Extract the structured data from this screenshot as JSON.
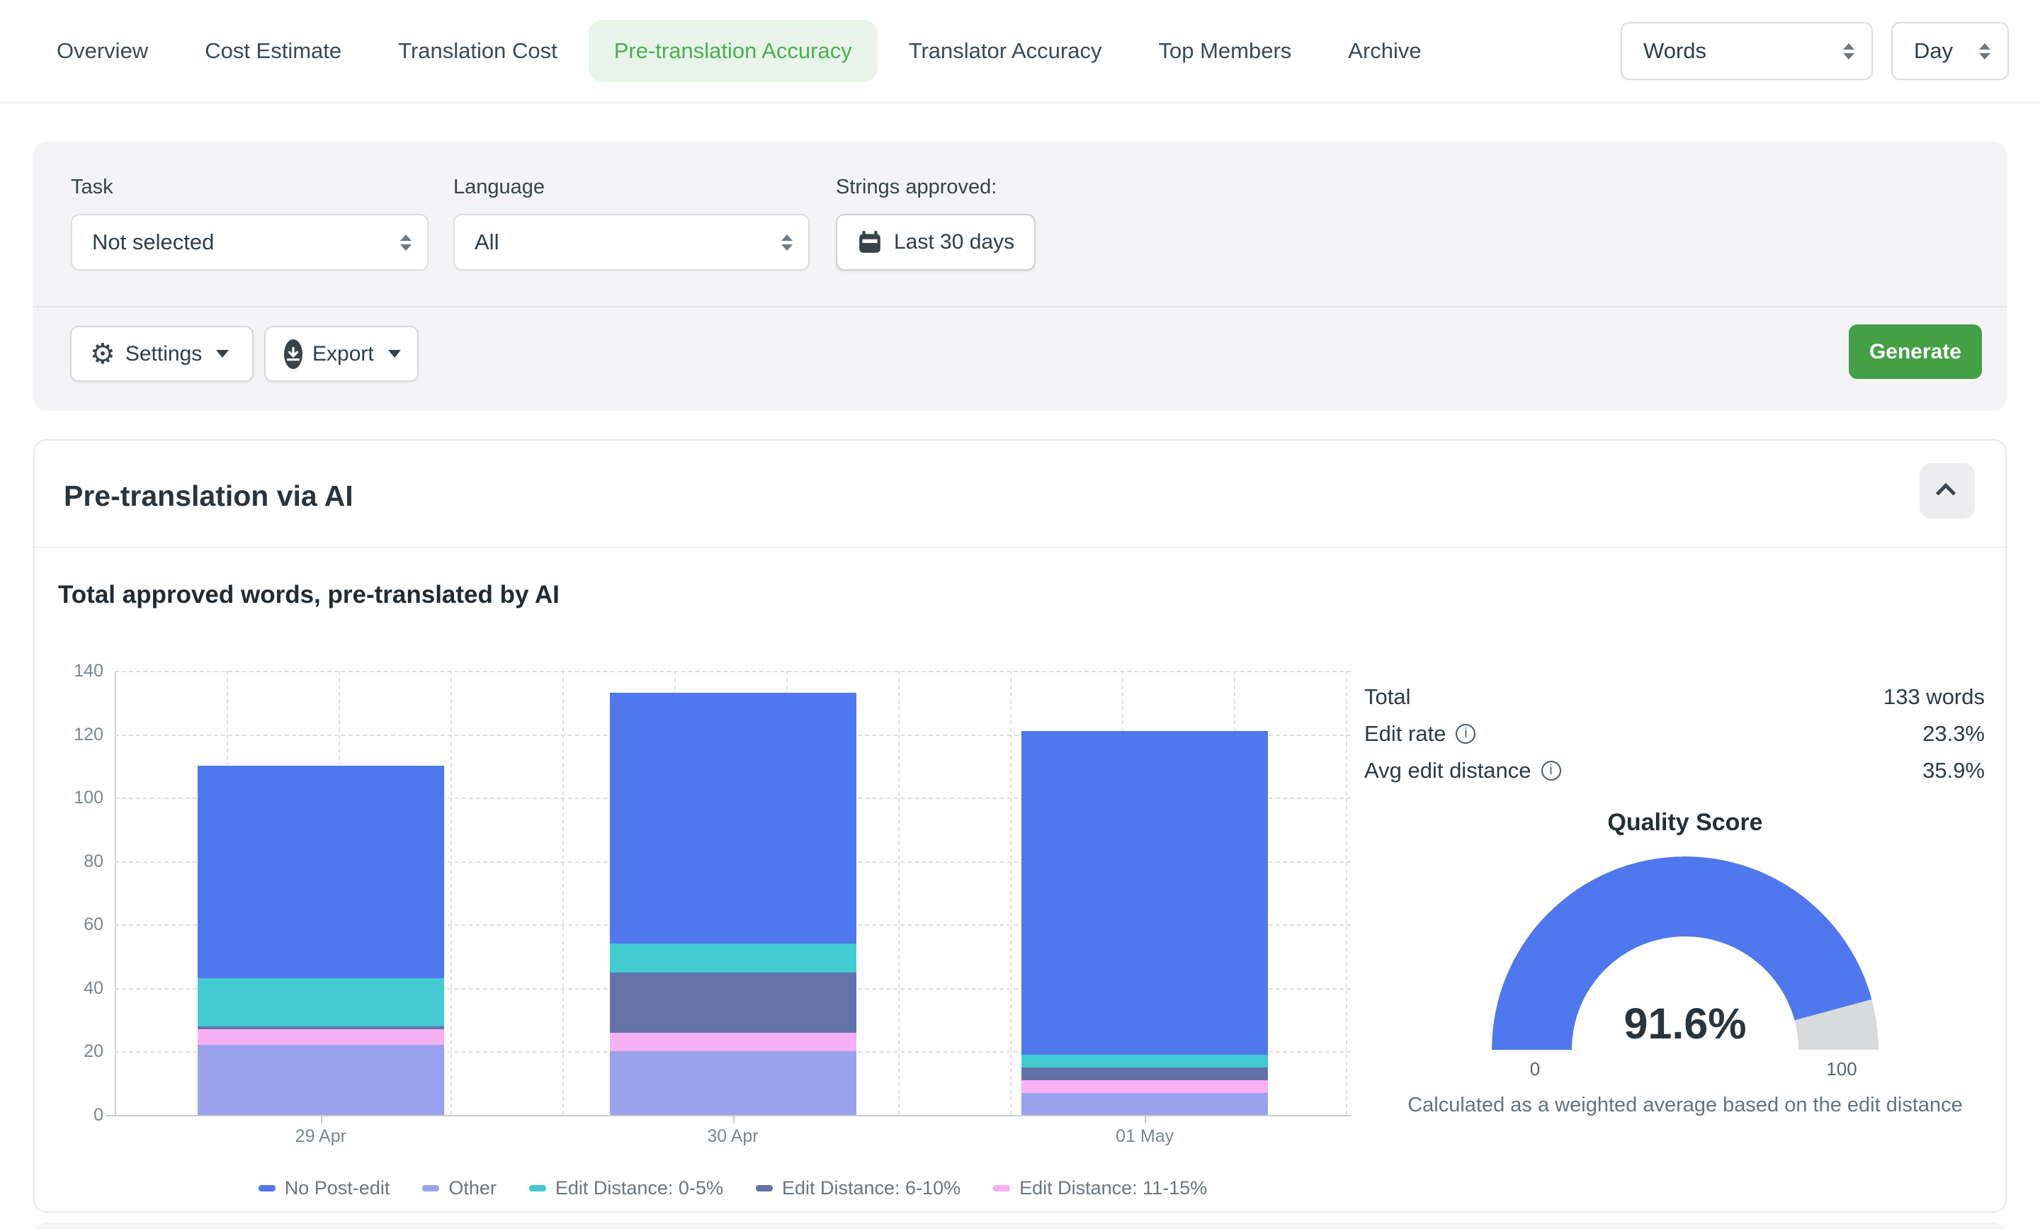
{
  "nav": {
    "tabs": [
      {
        "label": "Overview",
        "active": false
      },
      {
        "label": "Cost Estimate",
        "active": false
      },
      {
        "label": "Translation Cost",
        "active": false
      },
      {
        "label": "Pre-translation Accuracy",
        "active": true
      },
      {
        "label": "Translator Accuracy",
        "active": false
      },
      {
        "label": "Top Members",
        "active": false
      },
      {
        "label": "Archive",
        "active": false
      }
    ],
    "unit_select_value": "Words",
    "period_select_value": "Day"
  },
  "filters": {
    "task_label": "Task",
    "task_value": "Not selected",
    "language_label": "Language",
    "language_value": "All",
    "strings_approved_label": "Strings approved:",
    "date_range_value": "Last 30 days"
  },
  "toolbar": {
    "settings_label": "Settings",
    "export_label": "Export",
    "generate_label": "Generate"
  },
  "section": {
    "title": "Pre-translation via AI"
  },
  "chart_data": {
    "type": "bar",
    "stacked": true,
    "title": "Total approved words, pre-translated by AI",
    "categories": [
      "29 Apr",
      "30 Apr",
      "01 May"
    ],
    "series": [
      {
        "name": "No Post-edit",
        "color": "#4f78ee",
        "values": [
          67,
          79,
          102
        ]
      },
      {
        "name": "Other",
        "color": "#9aa2ec",
        "values": [
          22,
          20,
          7
        ]
      },
      {
        "name": "Edit Distance: 0-5%",
        "color": "#41cbd1",
        "values": [
          15,
          9,
          4
        ]
      },
      {
        "name": "Edit Distance: 6-10%",
        "color": "#6372a9",
        "values": [
          1,
          19,
          4
        ]
      },
      {
        "name": "Edit Distance: 11-15%",
        "color": "#f5b1f4",
        "values": [
          5,
          6,
          4
        ]
      }
    ],
    "stack_order": [
      "Other",
      "Edit Distance: 11-15%",
      "Edit Distance: 6-10%",
      "Edit Distance: 0-5%",
      "No Post-edit"
    ],
    "totals": [
      110,
      133,
      121
    ],
    "xlabel": "",
    "ylabel": "",
    "ylim": [
      0,
      140
    ],
    "ytick_step": 20,
    "grid": true,
    "legend_position": "bottom"
  },
  "stats": {
    "rows": [
      {
        "label": "Total",
        "value": "133 words",
        "info": false
      },
      {
        "label": "Edit rate",
        "value": "23.3%",
        "info": true
      },
      {
        "label": "Avg edit distance",
        "value": "35.9%",
        "info": true
      }
    ]
  },
  "gauge": {
    "title": "Quality Score",
    "value": 91.6,
    "display_value": "91.6%",
    "min_label": "0",
    "max_label": "100",
    "fill_color": "#4f78ee",
    "track_color": "#d9dadc",
    "caption": "Calculated as a weighted average based on the edit distance"
  }
}
